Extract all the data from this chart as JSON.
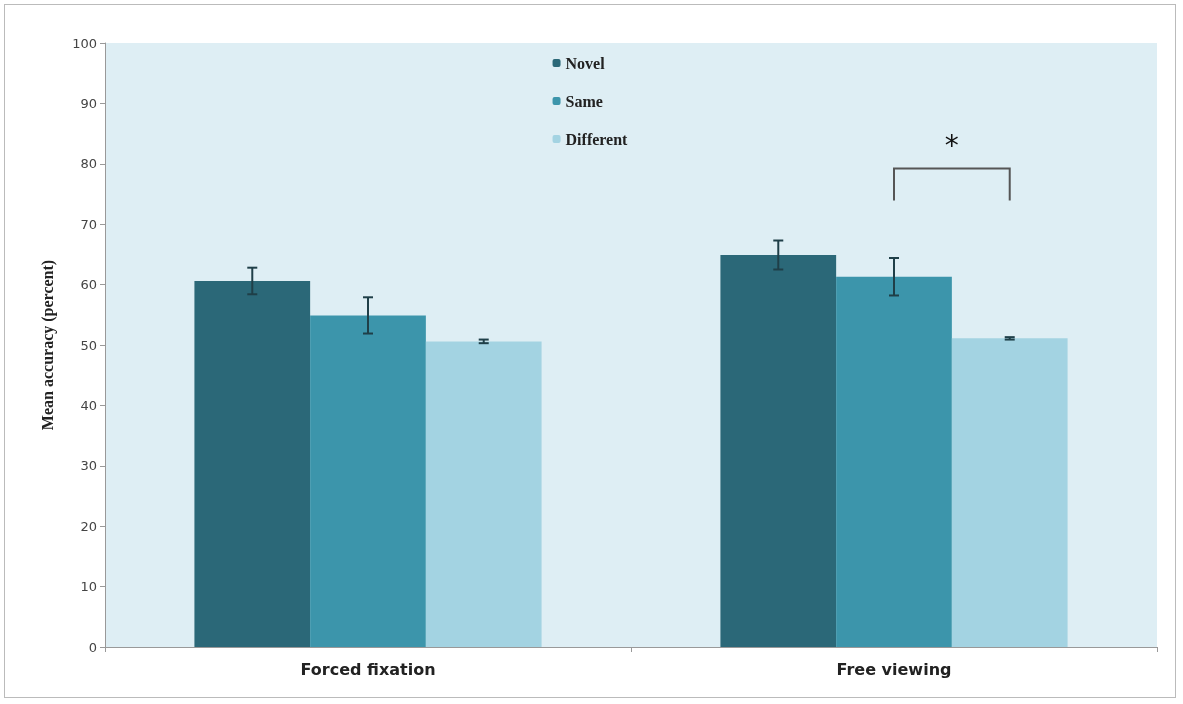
{
  "chart_data": {
    "type": "bar",
    "ylabel": "Mean accuracy (percent)",
    "categories": [
      "Forced fixation",
      "Free viewing"
    ],
    "series": [
      {
        "name": "Novel",
        "color": "#2b6878",
        "values": [
          60.6,
          64.9
        ],
        "errors": [
          2.2,
          2.4
        ]
      },
      {
        "name": "Same",
        "color": "#3c95ab",
        "values": [
          54.9,
          61.3
        ],
        "errors": [
          3.0,
          3.1
        ]
      },
      {
        "name": "Different",
        "color": "#a3d3e2",
        "values": [
          50.6,
          51.1
        ],
        "errors": [
          0.3,
          0.2
        ]
      }
    ],
    "ylim": [
      0,
      100
    ],
    "yticks": [
      0,
      10,
      20,
      30,
      40,
      50,
      60,
      70,
      80,
      90,
      100
    ],
    "grid": false,
    "legend": "top",
    "annotations": [
      "*"
    ]
  }
}
